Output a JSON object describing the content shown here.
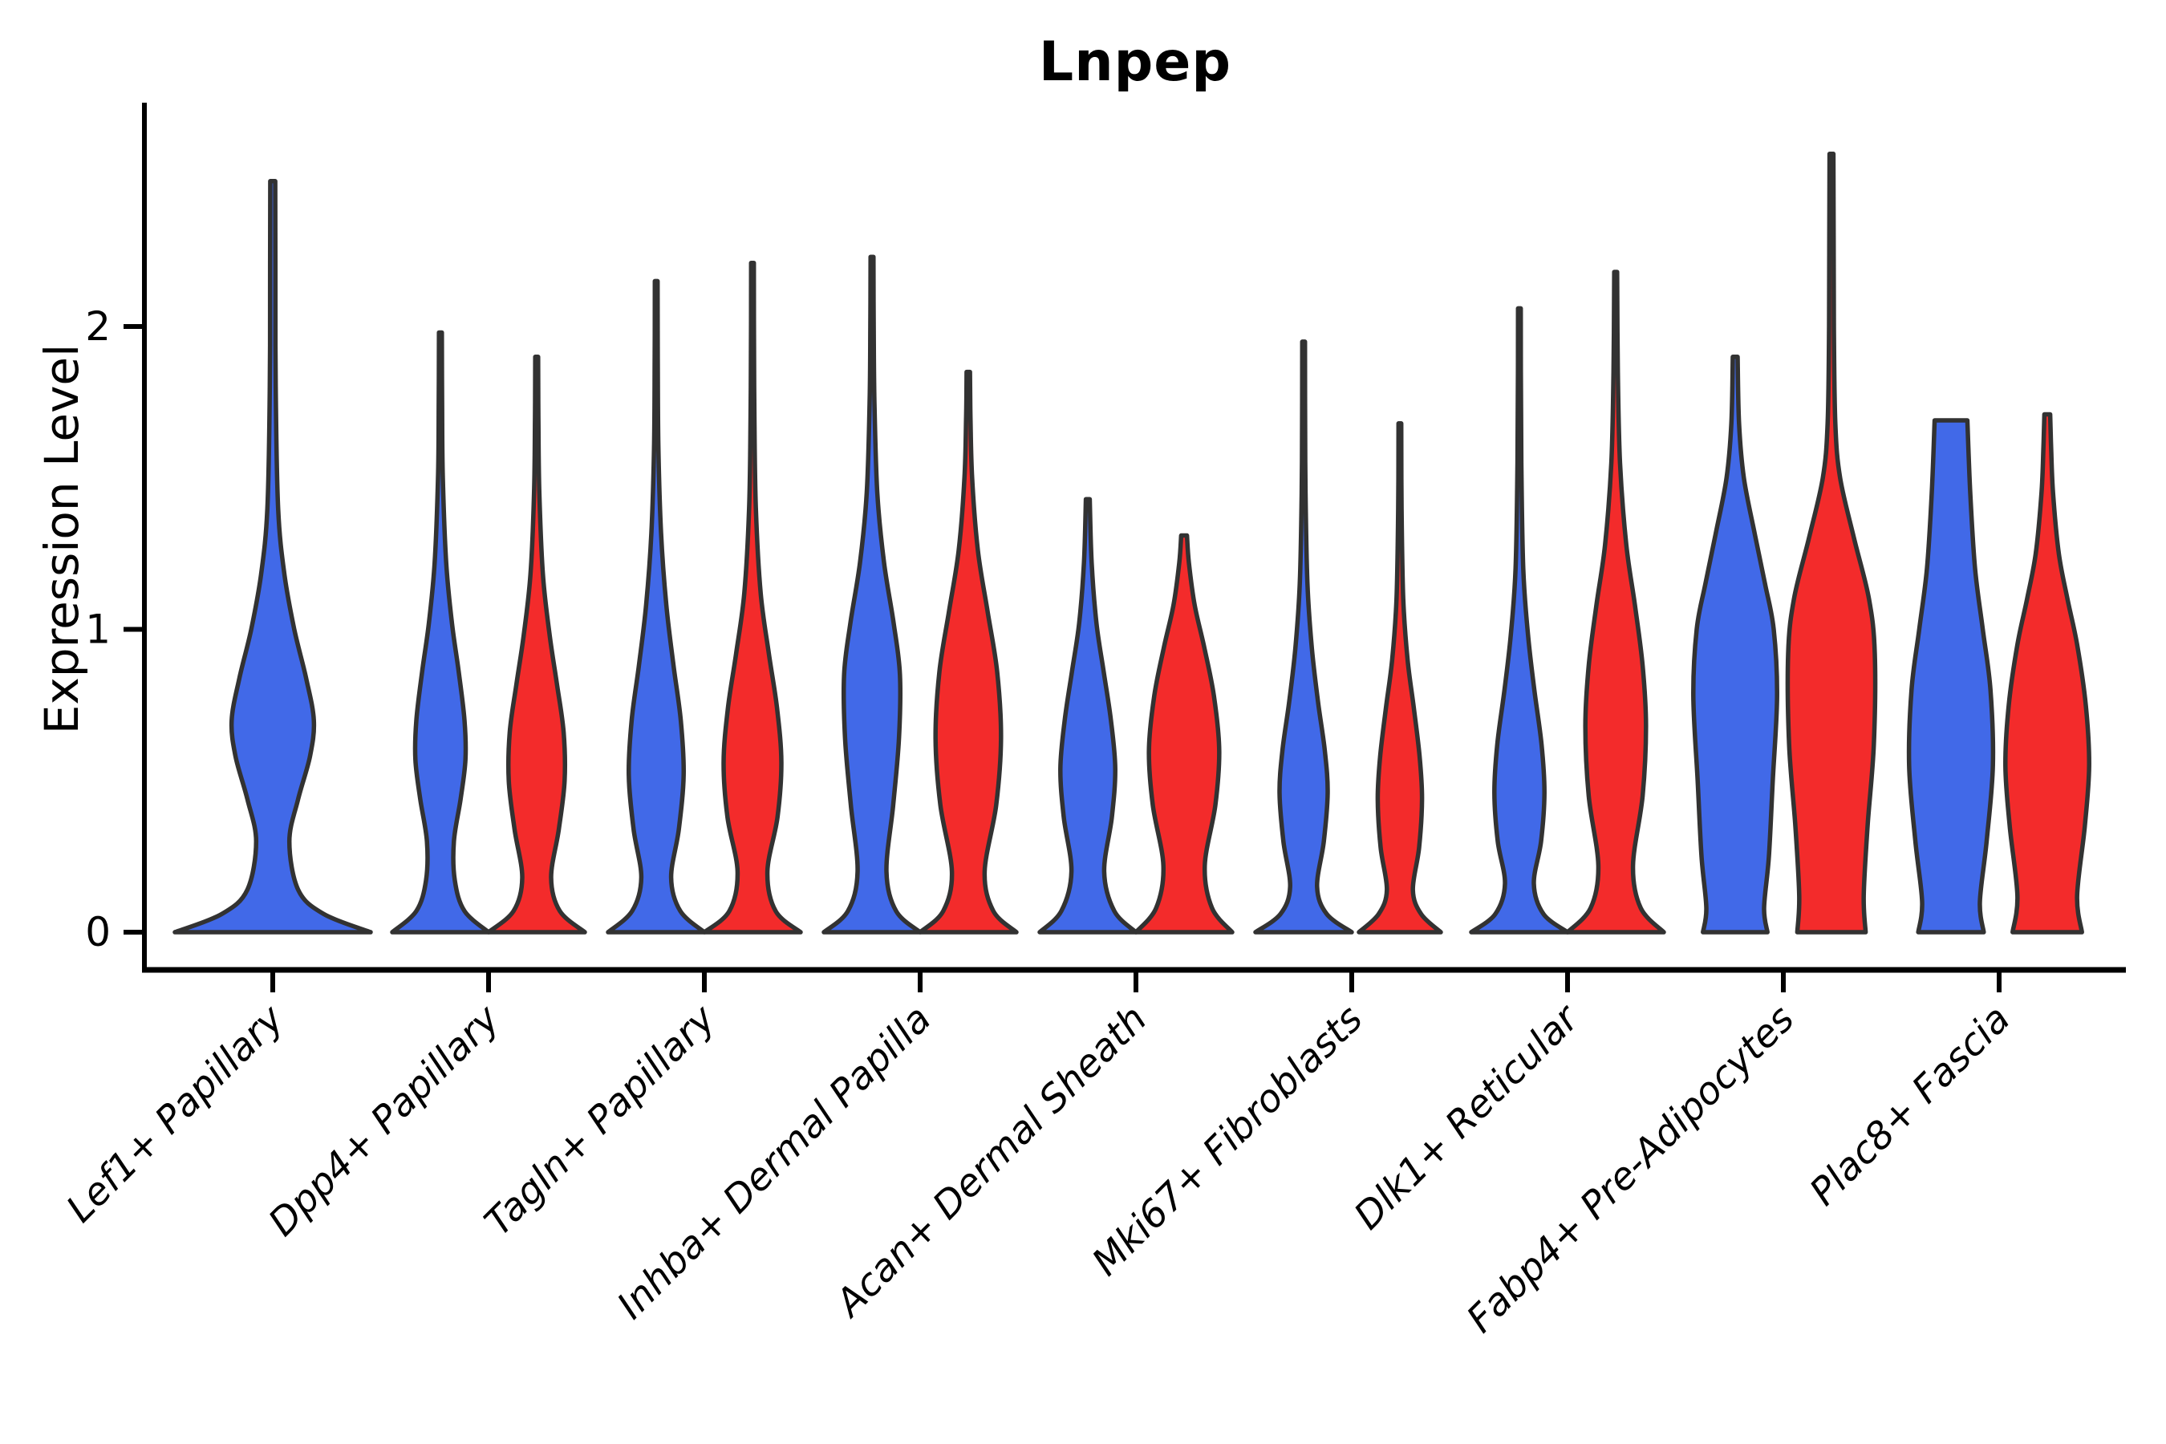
{
  "chart_data": {
    "type": "violin",
    "title": "Lnpep",
    "xlabel": "",
    "ylabel": "Expression Level",
    "yticks": [
      0,
      1,
      2
    ],
    "ylim": [
      -0.15,
      2.78
    ],
    "grid": false,
    "legend": "none",
    "split_colors": {
      "blue": "#4169E8",
      "red": "#F32B2B"
    },
    "outline_color": "#323232",
    "axis_color": "#000000",
    "categories": [
      "Lef1+ Papillary",
      "Dpp4+ Papillary",
      "Tagln+ Papillary",
      "Inhba+ Dermal Papilla",
      "Acan+ Dermal Sheath",
      "Mki67+ Fibroblasts",
      "Dlk1+ Reticular",
      "Fabp4+ Pre-Adipocytes",
      "Plac8+ Fascia"
    ],
    "violins": [
      {
        "category": "Lef1+ Papillary",
        "split": "single",
        "color": "blue",
        "max": 2.48,
        "profile": [
          [
            0,
            1.0
          ],
          [
            0.06,
            0.52
          ],
          [
            0.14,
            0.26
          ],
          [
            0.3,
            0.17
          ],
          [
            0.44,
            0.26
          ],
          [
            0.58,
            0.38
          ],
          [
            0.7,
            0.42
          ],
          [
            0.84,
            0.34
          ],
          [
            1.0,
            0.22
          ],
          [
            1.18,
            0.12
          ],
          [
            1.4,
            0.055
          ],
          [
            1.8,
            0.03
          ],
          [
            2.2,
            0.027
          ],
          [
            2.48,
            0.025
          ]
        ]
      },
      {
        "category": "Dpp4+ Papillary",
        "split": "left",
        "color": "blue",
        "max": 1.98,
        "profile": [
          [
            0,
            1.0
          ],
          [
            0.07,
            0.5
          ],
          [
            0.17,
            0.3
          ],
          [
            0.3,
            0.28
          ],
          [
            0.44,
            0.42
          ],
          [
            0.57,
            0.52
          ],
          [
            0.7,
            0.5
          ],
          [
            0.86,
            0.38
          ],
          [
            1.02,
            0.24
          ],
          [
            1.22,
            0.12
          ],
          [
            1.5,
            0.05
          ],
          [
            1.75,
            0.035
          ],
          [
            1.98,
            0.03
          ]
        ]
      },
      {
        "category": "Dpp4+ Papillary",
        "split": "right",
        "color": "red",
        "max": 1.9,
        "profile": [
          [
            0,
            1.0
          ],
          [
            0.07,
            0.48
          ],
          [
            0.18,
            0.3
          ],
          [
            0.34,
            0.46
          ],
          [
            0.5,
            0.58
          ],
          [
            0.66,
            0.56
          ],
          [
            0.82,
            0.42
          ],
          [
            0.98,
            0.27
          ],
          [
            1.18,
            0.13
          ],
          [
            1.45,
            0.055
          ],
          [
            1.7,
            0.035
          ],
          [
            1.9,
            0.03
          ]
        ]
      },
      {
        "category": "Tagln+ Papillary",
        "split": "left",
        "color": "blue",
        "max": 2.15,
        "profile": [
          [
            0,
            1.0
          ],
          [
            0.07,
            0.5
          ],
          [
            0.18,
            0.31
          ],
          [
            0.34,
            0.47
          ],
          [
            0.52,
            0.57
          ],
          [
            0.7,
            0.51
          ],
          [
            0.88,
            0.36
          ],
          [
            1.08,
            0.21
          ],
          [
            1.32,
            0.1
          ],
          [
            1.6,
            0.045
          ],
          [
            1.9,
            0.032
          ],
          [
            2.15,
            0.028
          ]
        ]
      },
      {
        "category": "Tagln+ Papillary",
        "split": "right",
        "color": "red",
        "max": 2.21,
        "profile": [
          [
            0,
            1.0
          ],
          [
            0.07,
            0.48
          ],
          [
            0.2,
            0.31
          ],
          [
            0.38,
            0.52
          ],
          [
            0.56,
            0.6
          ],
          [
            0.74,
            0.51
          ],
          [
            0.92,
            0.34
          ],
          [
            1.12,
            0.17
          ],
          [
            1.4,
            0.07
          ],
          [
            1.7,
            0.04
          ],
          [
            2.0,
            0.03
          ],
          [
            2.21,
            0.028
          ]
        ]
      },
      {
        "category": "Inhba+ Dermal Papilla",
        "split": "left",
        "color": "blue",
        "max": 2.23,
        "profile": [
          [
            0,
            1.0
          ],
          [
            0.07,
            0.5
          ],
          [
            0.2,
            0.3
          ],
          [
            0.42,
            0.44
          ],
          [
            0.64,
            0.56
          ],
          [
            0.85,
            0.58
          ],
          [
            1.02,
            0.45
          ],
          [
            1.22,
            0.25
          ],
          [
            1.45,
            0.11
          ],
          [
            1.75,
            0.05
          ],
          [
            2.0,
            0.035
          ],
          [
            2.23,
            0.03
          ]
        ]
      },
      {
        "category": "Inhba+ Dermal Papilla",
        "split": "right",
        "color": "red",
        "max": 1.85,
        "profile": [
          [
            0,
            1.0
          ],
          [
            0.07,
            0.52
          ],
          [
            0.2,
            0.34
          ],
          [
            0.42,
            0.58
          ],
          [
            0.64,
            0.68
          ],
          [
            0.86,
            0.6
          ],
          [
            1.06,
            0.4
          ],
          [
            1.26,
            0.2
          ],
          [
            1.5,
            0.08
          ],
          [
            1.7,
            0.045
          ],
          [
            1.85,
            0.035
          ]
        ]
      },
      {
        "category": "Acan+ Dermal Sheath",
        "split": "left",
        "color": "blue",
        "max": 1.43,
        "profile": [
          [
            0,
            1.0
          ],
          [
            0.07,
            0.55
          ],
          [
            0.2,
            0.34
          ],
          [
            0.38,
            0.5
          ],
          [
            0.54,
            0.57
          ],
          [
            0.7,
            0.48
          ],
          [
            0.86,
            0.33
          ],
          [
            1.02,
            0.18
          ],
          [
            1.22,
            0.08
          ],
          [
            1.43,
            0.04
          ]
        ]
      },
      {
        "category": "Acan+ Dermal Sheath",
        "split": "right",
        "color": "red",
        "max": 1.31,
        "profile": [
          [
            0,
            1.0
          ],
          [
            0.08,
            0.58
          ],
          [
            0.22,
            0.43
          ],
          [
            0.42,
            0.65
          ],
          [
            0.6,
            0.73
          ],
          [
            0.78,
            0.62
          ],
          [
            0.94,
            0.42
          ],
          [
            1.08,
            0.22
          ],
          [
            1.22,
            0.1
          ],
          [
            1.31,
            0.06
          ]
        ]
      },
      {
        "category": "Mki67+ Fibroblasts",
        "split": "left",
        "color": "blue",
        "max": 1.95,
        "profile": [
          [
            0,
            1.0
          ],
          [
            0.06,
            0.48
          ],
          [
            0.15,
            0.28
          ],
          [
            0.3,
            0.42
          ],
          [
            0.46,
            0.5
          ],
          [
            0.6,
            0.44
          ],
          [
            0.76,
            0.3
          ],
          [
            0.94,
            0.17
          ],
          [
            1.15,
            0.08
          ],
          [
            1.45,
            0.04
          ],
          [
            1.75,
            0.03
          ],
          [
            1.95,
            0.028
          ]
        ]
      },
      {
        "category": "Mki67+ Fibroblasts",
        "split": "right",
        "color": "red",
        "max": 1.68,
        "profile": [
          [
            0,
            0.85
          ],
          [
            0.06,
            0.44
          ],
          [
            0.14,
            0.27
          ],
          [
            0.28,
            0.4
          ],
          [
            0.44,
            0.46
          ],
          [
            0.58,
            0.41
          ],
          [
            0.74,
            0.29
          ],
          [
            0.9,
            0.16
          ],
          [
            1.1,
            0.07
          ],
          [
            1.4,
            0.035
          ],
          [
            1.68,
            0.028
          ]
        ]
      },
      {
        "category": "Dlk1+ Reticular",
        "split": "left",
        "color": "blue",
        "max": 2.06,
        "profile": [
          [
            0,
            1.0
          ],
          [
            0.06,
            0.5
          ],
          [
            0.16,
            0.3
          ],
          [
            0.3,
            0.45
          ],
          [
            0.46,
            0.52
          ],
          [
            0.62,
            0.46
          ],
          [
            0.8,
            0.31
          ],
          [
            0.98,
            0.18
          ],
          [
            1.2,
            0.08
          ],
          [
            1.55,
            0.04
          ],
          [
            1.85,
            0.03
          ],
          [
            2.06,
            0.028
          ]
        ]
      },
      {
        "category": "Dlk1+ Reticular",
        "split": "right",
        "color": "red",
        "max": 2.18,
        "profile": [
          [
            0,
            1.0
          ],
          [
            0.08,
            0.52
          ],
          [
            0.22,
            0.36
          ],
          [
            0.45,
            0.56
          ],
          [
            0.68,
            0.63
          ],
          [
            0.88,
            0.56
          ],
          [
            1.08,
            0.4
          ],
          [
            1.28,
            0.22
          ],
          [
            1.55,
            0.09
          ],
          [
            1.85,
            0.045
          ],
          [
            2.18,
            0.03
          ]
        ]
      },
      {
        "category": "Fabp4+ Pre-Adipocytes",
        "split": "left",
        "color": "blue",
        "max": 1.9,
        "profile": [
          [
            0,
            0.67
          ],
          [
            0.08,
            0.6
          ],
          [
            0.25,
            0.7
          ],
          [
            0.5,
            0.78
          ],
          [
            0.78,
            0.87
          ],
          [
            1.0,
            0.8
          ],
          [
            1.15,
            0.62
          ],
          [
            1.32,
            0.4
          ],
          [
            1.5,
            0.18
          ],
          [
            1.68,
            0.08
          ],
          [
            1.9,
            0.05
          ]
        ]
      },
      {
        "category": "Fabp4+ Pre-Adipocytes",
        "split": "right",
        "color": "red",
        "max": 2.57,
        "profile": [
          [
            0,
            0.71
          ],
          [
            0.12,
            0.67
          ],
          [
            0.35,
            0.75
          ],
          [
            0.62,
            0.88
          ],
          [
            0.92,
            0.9
          ],
          [
            1.1,
            0.78
          ],
          [
            1.3,
            0.47
          ],
          [
            1.5,
            0.18
          ],
          [
            1.68,
            0.08
          ],
          [
            2.0,
            0.05
          ],
          [
            2.3,
            0.045
          ],
          [
            2.57,
            0.04
          ]
        ]
      },
      {
        "category": "Plac8+ Fascia",
        "split": "left",
        "color": "blue",
        "max": 1.69,
        "profile": [
          [
            0,
            0.68
          ],
          [
            0.1,
            0.6
          ],
          [
            0.3,
            0.74
          ],
          [
            0.55,
            0.87
          ],
          [
            0.8,
            0.82
          ],
          [
            1.0,
            0.66
          ],
          [
            1.2,
            0.5
          ],
          [
            1.45,
            0.4
          ],
          [
            1.69,
            0.34
          ]
        ]
      },
      {
        "category": "Plac8+ Fascia",
        "split": "right",
        "color": "red",
        "max": 1.71,
        "profile": [
          [
            0,
            0.72
          ],
          [
            0.12,
            0.62
          ],
          [
            0.35,
            0.78
          ],
          [
            0.55,
            0.87
          ],
          [
            0.75,
            0.8
          ],
          [
            0.95,
            0.62
          ],
          [
            1.1,
            0.42
          ],
          [
            1.25,
            0.24
          ],
          [
            1.45,
            0.12
          ],
          [
            1.6,
            0.08
          ],
          [
            1.71,
            0.06
          ]
        ]
      }
    ]
  }
}
